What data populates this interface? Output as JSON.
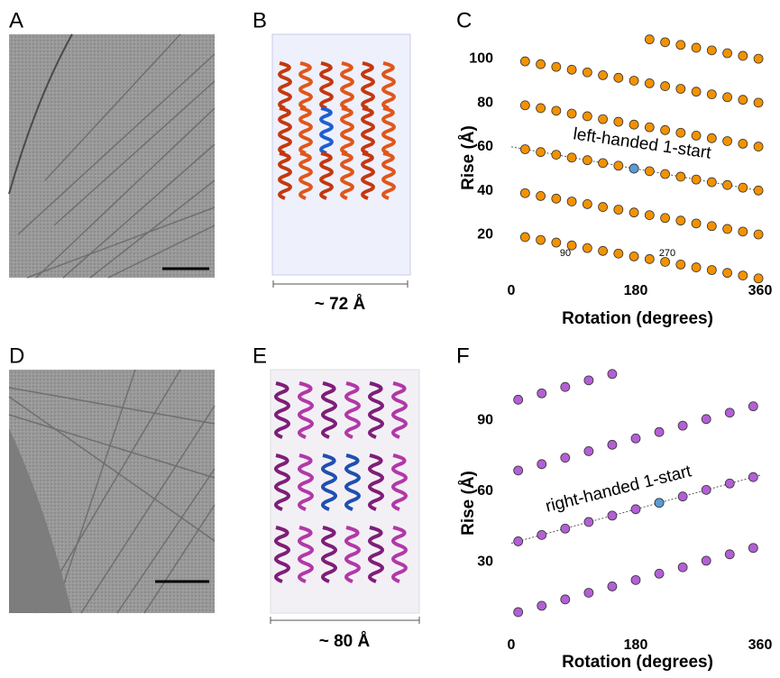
{
  "panels": {
    "a": "A",
    "b": "B",
    "c": "C",
    "d": "D",
    "e": "E",
    "f": "F"
  },
  "scale_labels": {
    "b": "~ 72 Å",
    "e": "~ 80 Å"
  },
  "chart_data": [
    {
      "type": "scatter",
      "xlabel": "Rotation (degrees)",
      "ylabel": "Rise (Å)",
      "xlim": [
        0,
        360
      ],
      "ylim": [
        0,
        110
      ],
      "xticks": [
        0,
        180,
        360
      ],
      "yticks": [
        20,
        40,
        60,
        80,
        100
      ],
      "annotations": [
        "left-handed 1-start",
        "90",
        "270"
      ],
      "line": {
        "x": [
          0,
          360
        ],
        "y": [
          60,
          40
        ]
      },
      "series": [
        {
          "color": "#f39200",
          "x": [
            20,
            42.5,
            65,
            87.5,
            110,
            132.5,
            155,
            177.5,
            200,
            222.5,
            245,
            267.5,
            290,
            312.5,
            335,
            357.5
          ],
          "values": [
            18.9,
            17.6,
            16.4,
            15.1,
            13.9,
            12.6,
            11.4,
            10.1,
            8.9,
            7.6,
            6.4,
            5.1,
            3.9,
            2.6,
            1.4,
            0.1
          ]
        },
        {
          "color": "#f39200",
          "x": [
            20,
            42.5,
            65,
            87.5,
            110,
            132.5,
            155,
            177.5,
            200,
            222.5,
            245,
            267.5,
            290,
            312.5,
            335,
            357.5
          ],
          "values": [
            38.9,
            37.6,
            36.4,
            35.1,
            33.9,
            32.6,
            31.4,
            30.1,
            28.9,
            27.6,
            26.4,
            25.1,
            23.9,
            22.6,
            21.4,
            20.1
          ]
        },
        {
          "color": "#f39200",
          "x": [
            20,
            42.5,
            65,
            87.5,
            110,
            132.5,
            155,
            177.5,
            200,
            222.5,
            245,
            267.5,
            290,
            312.5,
            335,
            357.5
          ],
          "values": [
            58.9,
            57.6,
            56.4,
            55.1,
            53.9,
            52.6,
            51.4,
            50.1,
            48.9,
            47.6,
            46.4,
            45.1,
            43.9,
            42.6,
            41.4,
            40.1
          ]
        },
        {
          "color": "#f39200",
          "x": [
            20,
            42.5,
            65,
            87.5,
            110,
            132.5,
            155,
            177.5,
            200,
            222.5,
            245,
            267.5,
            290,
            312.5,
            335,
            357.5
          ],
          "values": [
            78.9,
            77.6,
            76.4,
            75.1,
            73.9,
            72.6,
            71.4,
            70.1,
            68.9,
            67.6,
            66.4,
            65.1,
            63.9,
            62.6,
            61.4,
            60.1
          ]
        },
        {
          "color": "#f39200",
          "x": [
            20,
            42.5,
            65,
            87.5,
            110,
            132.5,
            155,
            177.5,
            200,
            222.5,
            245,
            267.5,
            290,
            312.5,
            335,
            357.5
          ],
          "values": [
            98.9,
            97.6,
            96.4,
            95.1,
            93.9,
            92.6,
            91.4,
            90.1,
            88.9,
            87.6,
            86.4,
            85.1,
            83.9,
            82.6,
            81.4,
            80.1
          ]
        },
        {
          "color": "#f39200",
          "x": [
            200,
            222.5,
            245,
            267.5,
            290,
            312.5,
            335,
            357.5
          ],
          "values": [
            108.9,
            107.6,
            106.4,
            105.1,
            103.9,
            102.6,
            101.4,
            100.1
          ]
        },
        {
          "color": "#5b9bd5",
          "x": [
            177.5
          ],
          "values": [
            50.1
          ]
        }
      ]
    },
    {
      "type": "scatter",
      "xlabel": "Rotation (degrees)",
      "ylabel": "Rise (Å)",
      "xlim": [
        0,
        360
      ],
      "ylim": [
        0,
        110
      ],
      "xticks": [
        0,
        180,
        360
      ],
      "yticks": [
        30,
        60,
        90
      ],
      "annotations": [
        "right-handed 1-start"
      ],
      "line": {
        "x": [
          0,
          360
        ],
        "y": [
          38,
          66.8
        ]
      },
      "series": [
        {
          "color": "#b35fd6",
          "x": [
            10,
            44,
            78,
            112,
            146,
            180,
            214,
            248,
            282,
            316,
            350
          ],
          "values": [
            8.8,
            11.5,
            14.2,
            17.0,
            19.7,
            22.4,
            25.1,
            27.8,
            30.6,
            33.3,
            36.0
          ]
        },
        {
          "color": "#b35fd6",
          "x": [
            10,
            44,
            78,
            112,
            146,
            180,
            214,
            248,
            282,
            316,
            350
          ],
          "values": [
            38.8,
            41.5,
            44.2,
            47.0,
            49.7,
            52.4,
            55.1,
            57.8,
            60.6,
            63.3,
            66.0
          ]
        },
        {
          "color": "#b35fd6",
          "x": [
            10,
            44,
            78,
            112,
            146,
            180,
            214,
            248,
            282,
            316,
            350
          ],
          "values": [
            68.8,
            71.5,
            74.2,
            77.0,
            79.7,
            82.4,
            85.1,
            87.8,
            90.6,
            93.3,
            96.0
          ]
        },
        {
          "color": "#b35fd6",
          "x": [
            10,
            44,
            78,
            112,
            146
          ],
          "values": [
            98.8,
            101.5,
            104.2,
            107.0,
            109.7
          ]
        },
        {
          "color": "#5b9bd5",
          "x": [
            214
          ],
          "values": [
            55.1
          ]
        }
      ]
    }
  ]
}
